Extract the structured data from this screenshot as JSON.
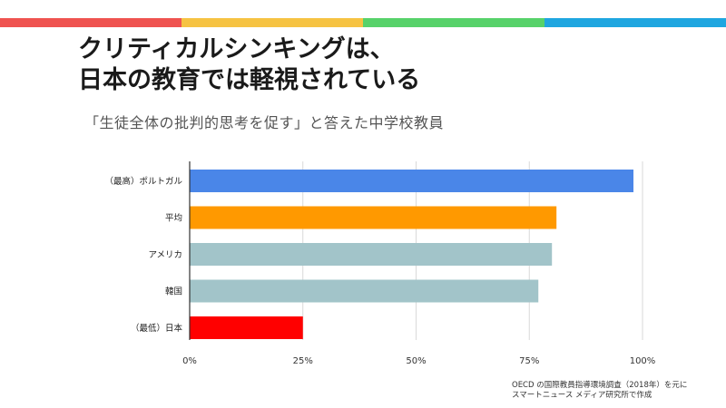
{
  "stripe_colors": [
    "#ef5350",
    "#f6c342",
    "#57d26a",
    "#1fa6e0"
  ],
  "headline": {
    "line1": "クリティカルシンキングは、",
    "line2": "日本の教育では軽視されている"
  },
  "chart_data": {
    "type": "bar",
    "orientation": "horizontal",
    "title": "「生徒全体の批判的思考を促す」と答えた中学校教員",
    "categories": [
      "（最高）ポルトガル",
      "平均",
      "アメリカ",
      "韓国",
      "（最低）日本"
    ],
    "values": [
      98,
      81,
      80,
      77,
      25
    ],
    "unit": "%",
    "bar_colors": [
      "#4a86e8",
      "#ff9900",
      "#a2c4c9",
      "#a2c4c9",
      "#ff0000"
    ],
    "xlim": [
      0,
      100
    ],
    "x_ticks": [
      0,
      25,
      50,
      75,
      100
    ],
    "x_tick_labels": [
      "0%",
      "25%",
      "50%",
      "75%",
      "100%"
    ],
    "grid": true
  },
  "source": {
    "line1": "OECD の国際教員指導環境調査（2018年）を元に",
    "line2": "スマートニュース メディア研究所で作成"
  }
}
